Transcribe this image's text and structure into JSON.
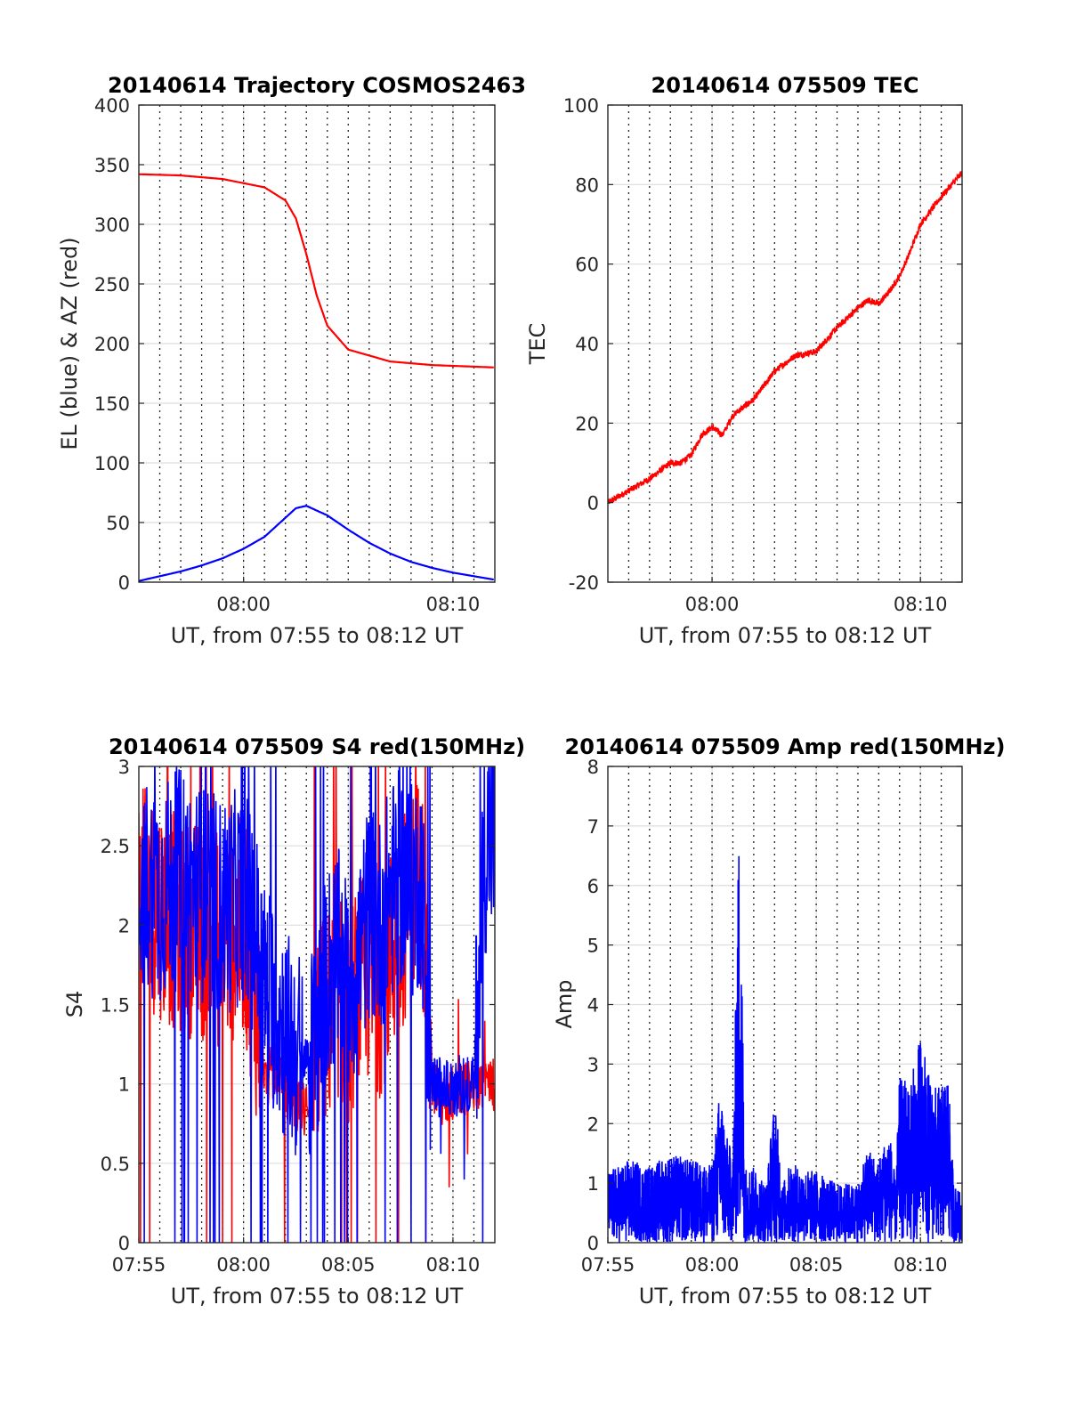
{
  "figure": {
    "layout": "2x2 grid of MATLAB-style subplots"
  },
  "chart_data": [
    {
      "type": "line",
      "title": "20140614 Trajectory COSMOS2463",
      "xlabel": "UT, from 07:55 to 08:12 UT",
      "ylabel": "EL (blue) & AZ (red)",
      "xlim": [
        0,
        17
      ],
      "ylim": [
        0,
        400
      ],
      "xticks": [
        {
          "value": 5,
          "label": "08:00"
        },
        {
          "value": 15,
          "label": "08:10"
        }
      ],
      "yticks": [
        0,
        50,
        100,
        150,
        200,
        250,
        300,
        350,
        400
      ],
      "grid": true,
      "colors": {
        "az": "#ff0000",
        "el": "#0000ff"
      },
      "series": [
        {
          "id": "az",
          "color": "#ff0000",
          "x": [
            0,
            2,
            4,
            6,
            7,
            7.5,
            8,
            8.5,
            9,
            10,
            12,
            14,
            17
          ],
          "y": [
            342,
            341,
            338,
            331,
            320,
            305,
            275,
            240,
            215,
            195,
            185,
            182,
            180
          ]
        },
        {
          "id": "el",
          "color": "#0000ff",
          "x": [
            0,
            1,
            2,
            3,
            4,
            5,
            6,
            7,
            7.5,
            8,
            9,
            10,
            11,
            12,
            13,
            14,
            15,
            16,
            17
          ],
          "y": [
            1,
            5,
            9,
            14,
            20,
            28,
            38,
            54,
            62,
            64,
            56,
            44,
            33,
            24,
            17,
            12,
            8,
            5,
            2
          ]
        }
      ]
    },
    {
      "type": "line",
      "title": "20140614 075509 TEC",
      "xlabel": "UT, from 07:55 to 08:12 UT",
      "ylabel": "TEC",
      "xlim": [
        0,
        17
      ],
      "ylim": [
        -20,
        100
      ],
      "xticks": [
        {
          "value": 5,
          "label": "08:00"
        },
        {
          "value": 15,
          "label": "08:10"
        }
      ],
      "yticks": [
        -20,
        0,
        20,
        40,
        60,
        80,
        100
      ],
      "grid": true,
      "series": [
        {
          "id": "tec",
          "color": "#ff0000",
          "x": [
            0,
            1,
            2,
            3,
            3.5,
            4,
            4.5,
            5,
            5.5,
            6,
            7,
            8,
            9,
            10,
            11,
            12,
            12.5,
            13,
            13.5,
            14,
            14.5,
            15,
            16,
            17
          ],
          "y": [
            0,
            3,
            6,
            10,
            10,
            12,
            17,
            19,
            17,
            22,
            26,
            33,
            37,
            38,
            44,
            49,
            51,
            50,
            53,
            57,
            63,
            70,
            77,
            83
          ]
        }
      ]
    },
    {
      "type": "line",
      "title": "20140614 075509 S4 red(150MHz)",
      "xlabel": "UT, from 07:55 to 08:12 UT",
      "ylabel": "S4",
      "xlim": [
        0,
        17
      ],
      "ylim": [
        0,
        3
      ],
      "xticks": [
        {
          "value": 0,
          "label": "07:55"
        },
        {
          "value": 5,
          "label": "08:00"
        },
        {
          "value": 10,
          "label": "08:05"
        },
        {
          "value": 15,
          "label": "08:10"
        }
      ],
      "yticks": [
        {
          "value": 0,
          "label": "0"
        },
        {
          "value": 0.5,
          "label": "0.5"
        },
        {
          "value": 1,
          "label": "1"
        },
        {
          "value": 1.5,
          "label": "1.5"
        },
        {
          "value": 2,
          "label": "2"
        },
        {
          "value": 2.5,
          "label": "2.5"
        },
        {
          "value": 3,
          "label": "3"
        }
      ],
      "grid": true,
      "series": [
        {
          "id": "s4-red",
          "color": "#ff0000",
          "x": [
            0,
            2,
            4,
            5,
            5.5,
            6,
            6.5,
            7,
            7.5,
            8,
            8.5,
            9,
            9.5,
            10,
            10.5,
            11,
            11.5,
            12,
            12.5,
            13,
            13.5,
            14,
            14.5,
            15,
            15.5,
            16,
            16.5,
            17
          ],
          "y": [
            2.2,
            2.0,
            1.9,
            2.0,
            1.6,
            1.0,
            1.1,
            0.95,
            0.85,
            0.85,
            1.3,
            1.4,
            1.6,
            1.4,
            1.6,
            1.7,
            1.6,
            1.8,
            2.0,
            2.2,
            2.3,
            1.0,
            0.9,
            0.95,
            0.95,
            1.0,
            1.0,
            1.0
          ]
        },
        {
          "id": "s4-blue",
          "color": "#0000ff",
          "x": [
            0,
            1,
            2,
            3,
            4,
            5,
            5.5,
            6,
            6.5,
            7,
            7.5,
            8,
            8.5,
            9,
            9.5,
            10,
            10.5,
            11,
            11.5,
            12,
            12.5,
            13,
            13.5,
            14,
            14.5,
            15,
            15.5,
            16,
            16.5,
            17
          ],
          "y": [
            2.3,
            2.2,
            2.3,
            2.2,
            2.1,
            2.2,
            2.0,
            1.6,
            1.5,
            1.3,
            1.2,
            1.1,
            1.3,
            1.7,
            1.8,
            1.6,
            1.8,
            2.1,
            2.0,
            2.2,
            2.3,
            2.2,
            2.3,
            1.0,
            1.0,
            0.95,
            1.0,
            1.0,
            2.5,
            2.6
          ]
        }
      ]
    },
    {
      "type": "line",
      "title": "20140614 075509 Amp red(150MHz)",
      "xlabel": "UT, from 07:55 to 08:12 UT",
      "ylabel": "Amp",
      "xlim": [
        0,
        17
      ],
      "ylim": [
        0,
        8
      ],
      "xticks": [
        {
          "value": 0,
          "label": "07:55"
        },
        {
          "value": 5,
          "label": "08:00"
        },
        {
          "value": 10,
          "label": "08:05"
        },
        {
          "value": 15,
          "label": "08:10"
        }
      ],
      "yticks": [
        0,
        1,
        2,
        3,
        4,
        5,
        6,
        7,
        8
      ],
      "grid": true,
      "series": [
        {
          "id": "amp",
          "color": "#0000ff",
          "x": [
            0,
            1,
            2,
            3,
            4,
            5,
            5.4,
            5.7,
            6,
            6.3,
            6.6,
            6.9,
            7.2,
            7.6,
            8,
            8.4,
            8.8,
            9,
            10,
            11,
            12,
            12.5,
            13,
            13.5,
            13.8,
            14,
            14.5,
            15,
            15.5,
            16,
            16.3,
            16.6,
            17
          ],
          "y": [
            1.2,
            1.4,
            1.3,
            1.5,
            1.4,
            1.3,
            2.7,
            1.8,
            1.5,
            7.3,
            1.3,
            1.3,
            1.2,
            1.0,
            2.5,
            1.0,
            1.4,
            1.3,
            1.2,
            1.0,
            1.0,
            1.6,
            1.4,
            2.0,
            1.0,
            2.8,
            2.7,
            3.5,
            2.7,
            2.6,
            3.0,
            1.0,
            0.8
          ]
        }
      ]
    }
  ]
}
